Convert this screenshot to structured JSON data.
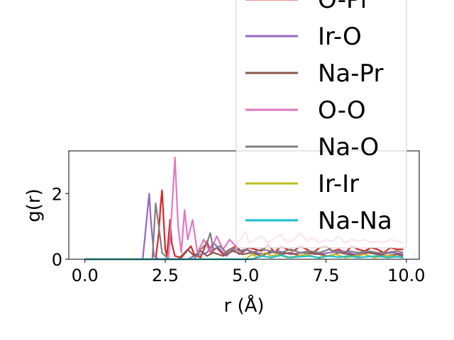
{
  "chart_data": {
    "type": "line",
    "title": "",
    "xlabel": "r (Å)",
    "ylabel": "g(r)",
    "xlim": [
      -0.5,
      10.4
    ],
    "ylim": [
      0,
      3.3
    ],
    "xticks": [
      {
        "value": 0.0,
        "label": "0.0"
      },
      {
        "value": 2.5,
        "label": "2.5"
      },
      {
        "value": 5.0,
        "label": "5.0"
      },
      {
        "value": 7.5,
        "label": "7.5"
      },
      {
        "value": 10.0,
        "label": "10.0"
      }
    ],
    "yticks": [
      {
        "value": 0,
        "label": "0"
      },
      {
        "value": 2,
        "label": "2"
      }
    ],
    "grid": false,
    "legend_position": "upper-right",
    "series": [
      {
        "name": "O-Pr",
        "color": "#d62728",
        "x": [
          0,
          2.2,
          2.3,
          2.35,
          2.4,
          2.5,
          2.55,
          2.65,
          2.7,
          2.8,
          3.0,
          3.3,
          3.4,
          3.6,
          3.8,
          3.9,
          4.1,
          4.3,
          4.5,
          4.7,
          4.9,
          5.1,
          5.3,
          5.5,
          5.7,
          5.9,
          6.1,
          6.3,
          6.5,
          6.7,
          6.9,
          7.1,
          7.3,
          7.5,
          7.7,
          7.9,
          8.1,
          8.3,
          8.5,
          8.7,
          8.9,
          9.1,
          9.3,
          9.5,
          9.7,
          9.9
        ],
        "y": [
          0,
          0,
          0.8,
          1.6,
          2.1,
          0.3,
          0.1,
          1.2,
          0.5,
          0.1,
          0.05,
          0.4,
          0.15,
          0.05,
          0.55,
          0.2,
          0.35,
          0.15,
          0.3,
          0.4,
          0.2,
          0.35,
          0.3,
          0.25,
          0.45,
          0.2,
          0.4,
          0.3,
          0.25,
          0.4,
          0.3,
          0.2,
          0.35,
          0.4,
          0.25,
          0.3,
          0.2,
          0.4,
          0.3,
          0.25,
          0.35,
          0.3,
          0.2,
          0.35,
          0.3,
          0.3
        ]
      },
      {
        "name": "Ir-O",
        "color": "#9467bd",
        "x": [
          0,
          1.8,
          1.9,
          2.0,
          2.05,
          2.15,
          2.3,
          3.2,
          3.4,
          3.8,
          4.0,
          4.2,
          4.4,
          4.6,
          4.8,
          5.0,
          5.3,
          5.6,
          6.0,
          6.4,
          6.8,
          7.2,
          7.6,
          8.0,
          8.4,
          8.8,
          9.2,
          9.6,
          9.9
        ],
        "y": [
          0,
          0,
          1.0,
          2.0,
          1.2,
          0.1,
          0,
          0,
          0.1,
          0.2,
          0.5,
          0.3,
          0.1,
          0.3,
          0.15,
          0.3,
          0.2,
          0.15,
          0.25,
          0.15,
          0.2,
          0.15,
          0.2,
          0.25,
          0.15,
          0.2,
          0.15,
          0.2,
          0.15
        ]
      },
      {
        "name": "Na-Pr",
        "color": "#8c564b",
        "x": [
          0,
          2.9,
          3.2,
          3.4,
          3.6,
          3.8,
          4.0,
          4.3,
          4.6,
          4.9,
          5.2,
          5.5,
          5.8,
          6.1,
          6.4,
          6.7,
          7.0,
          7.3,
          7.6,
          7.9,
          8.2,
          8.5,
          8.8,
          9.1,
          9.4,
          9.7,
          9.9
        ],
        "y": [
          0,
          0,
          0.3,
          0.1,
          0.25,
          0.1,
          0.2,
          0.1,
          0.25,
          0.15,
          0.2,
          0.1,
          0.25,
          0.15,
          0.2,
          0.1,
          0.2,
          0.15,
          0.1,
          0.2,
          0.15,
          0.1,
          0.2,
          0.15,
          0.1,
          0.15,
          0.1
        ]
      },
      {
        "name": "O-O",
        "color": "#e377c2",
        "x": [
          0,
          2.6,
          2.7,
          2.8,
          2.9,
          3.0,
          3.1,
          3.2,
          3.35,
          3.5,
          3.7,
          3.9,
          4.1,
          4.3,
          4.5,
          4.7,
          4.9,
          5.0,
          5.1,
          5.3,
          5.5,
          5.7,
          5.9,
          6.1,
          6.3,
          6.5,
          6.7,
          6.9,
          7.1,
          7.3,
          7.5,
          7.7,
          7.9,
          8.1,
          8.3,
          8.5,
          8.7,
          8.9,
          9.1,
          9.3,
          9.5,
          9.7,
          9.9
        ],
        "y": [
          0,
          0,
          1.4,
          3.1,
          1.0,
          0.2,
          1.5,
          0.6,
          1.2,
          0.2,
          0.6,
          0.2,
          0.7,
          0.3,
          0.6,
          0.4,
          0.7,
          0.85,
          0.5,
          0.6,
          0.7,
          0.5,
          0.65,
          0.75,
          0.5,
          0.6,
          0.8,
          0.55,
          0.65,
          0.5,
          0.6,
          0.55,
          0.7,
          0.5,
          0.6,
          0.55,
          0.6,
          0.5,
          0.55,
          0.5,
          0.6,
          0.55,
          0.5
        ]
      },
      {
        "name": "Na-O",
        "color": "#7f7f7f",
        "x": [
          0,
          2.1,
          2.2,
          2.3,
          2.4,
          2.6,
          3.4,
          3.6,
          3.8,
          3.9,
          4.0,
          4.2,
          4.4,
          4.6,
          4.8,
          5.0,
          5.2,
          5.5,
          5.8,
          6.1,
          6.4,
          6.7,
          7.0,
          7.3,
          7.6,
          7.9,
          8.2,
          8.5,
          8.8,
          9.1,
          9.4,
          9.7,
          9.9
        ],
        "y": [
          0,
          0,
          1.7,
          1.0,
          0.2,
          0,
          0,
          0.3,
          0.5,
          0.8,
          0.3,
          0.4,
          0.2,
          0.35,
          0.25,
          0.3,
          0.2,
          0.3,
          0.25,
          0.2,
          0.3,
          0.2,
          0.25,
          0.2,
          0.3,
          0.2,
          0.25,
          0.2,
          0.25,
          0.2,
          0.2,
          0.25,
          0.2
        ]
      },
      {
        "name": "Ir-Ir",
        "color": "#bcbd22",
        "x": [
          0,
          5.0,
          5.2,
          5.4,
          5.6,
          5.8,
          6.0,
          6.3,
          6.6,
          6.9,
          7.2,
          7.5,
          7.8,
          8.1,
          8.4,
          8.7,
          9.0,
          9.3,
          9.6,
          9.9
        ],
        "y": [
          0,
          0,
          0.15,
          0.05,
          0.2,
          0.1,
          0.15,
          0.05,
          0.1,
          0.15,
          0.05,
          0.1,
          0.15,
          0.05,
          0.1,
          0.15,
          0.05,
          0.1,
          0.1,
          0.05
        ]
      },
      {
        "name": "Na-Na",
        "color": "#17becf",
        "x": [
          0,
          5.2,
          5.5,
          5.8,
          6.1,
          6.4,
          6.7,
          7.0,
          7.3,
          7.6,
          7.9,
          8.2,
          8.5,
          8.8,
          9.1,
          9.4,
          9.7,
          9.9
        ],
        "y": [
          0,
          0,
          0.1,
          0.05,
          0.12,
          0.05,
          0.08,
          0.1,
          0.04,
          0.1,
          0.06,
          0.1,
          0.05,
          0.08,
          0.1,
          0.05,
          0.08,
          0.05
        ]
      }
    ]
  }
}
